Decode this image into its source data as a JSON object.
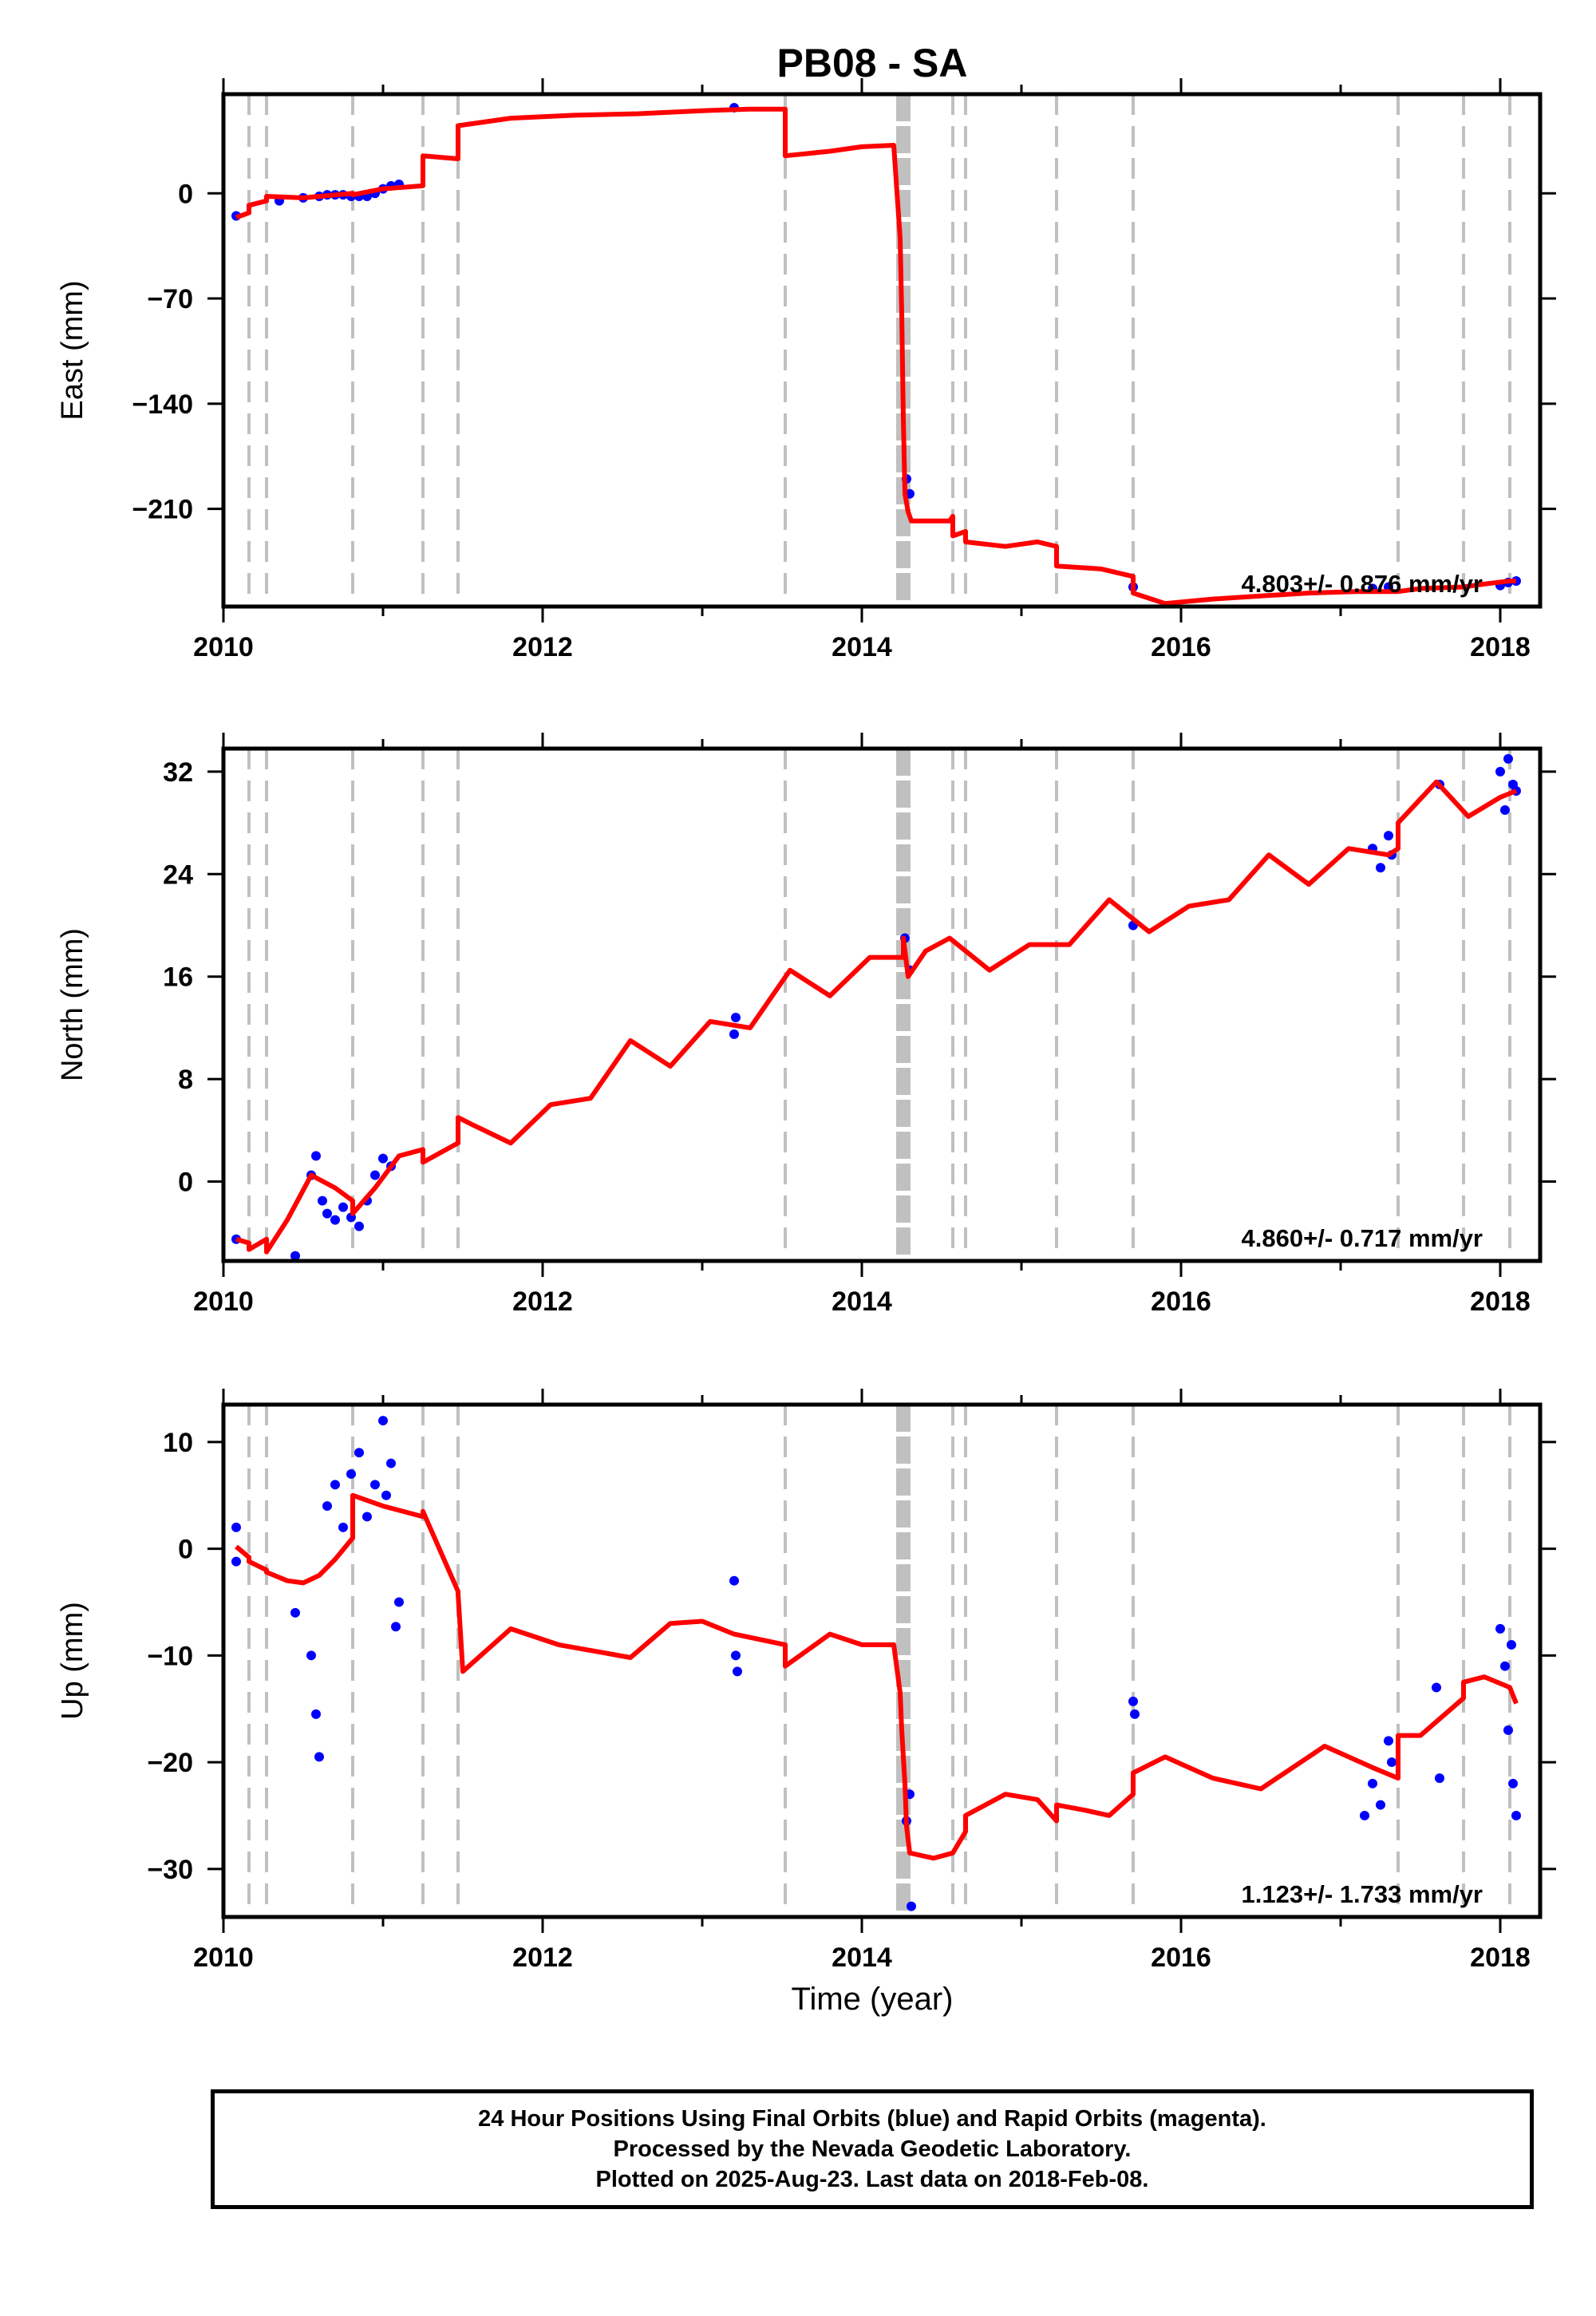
{
  "title": "PB08 - SA",
  "xlabel": "Time (year)",
  "footer": {
    "line1": "24 Hour Positions Using Final Orbits (blue) and Rapid Orbits (magenta).",
    "line2": "Processed by the Nevada Geodetic Laboratory.",
    "line3": "Plotted on 2025-Aug-23. Last data on 2018-Feb-08."
  },
  "colors": {
    "final_orbits": "#0000ff",
    "model": "#ff0000",
    "event_lines": "#c0c0c0"
  },
  "event_lines": [
    2010.16,
    2010.27,
    2010.81,
    2011.25,
    2011.47,
    2013.52,
    2014.26,
    2014.57,
    2014.65,
    2015.22,
    2015.7,
    2017.36,
    2017.77,
    2018.06
  ],
  "chart_data": [
    {
      "type": "scatter",
      "name": "east",
      "ylabel": "East (mm)",
      "rate_label": "4.803+/- 0.876 mm/yr",
      "xlim": [
        2010.0,
        2018.25
      ],
      "ylim": [
        -275,
        66
      ],
      "xticks": [
        2010,
        2012,
        2014,
        2016,
        2018
      ],
      "yticks": [
        0,
        -70,
        -140,
        -210
      ],
      "ytick_labels": [
        "0",
        "−70",
        "−140",
        "−210"
      ],
      "model": {
        "x": [
          2010.08,
          2010.16,
          2010.16,
          2010.27,
          2010.27,
          2010.5,
          2010.81,
          2010.81,
          2011.0,
          2011.25,
          2011.25,
          2011.47,
          2011.47,
          2011.8,
          2012.2,
          2012.6,
          2013.0,
          2013.3,
          2013.52,
          2013.52,
          2013.8,
          2014.0,
          2014.2,
          2014.24,
          2014.25,
          2014.26,
          2014.27,
          2014.29,
          2014.3,
          2014.31,
          2014.55,
          2014.57,
          2014.57,
          2014.65,
          2014.65,
          2014.9,
          2015.1,
          2015.22,
          2015.22,
          2015.5,
          2015.7,
          2015.7,
          2015.9,
          2016.2,
          2016.5,
          2016.8,
          2017.1,
          2017.36,
          2017.5,
          2017.77,
          2017.9,
          2018.06,
          2018.1
        ],
        "y": [
          -16,
          -13,
          -8,
          -5,
          -2,
          -3,
          0,
          -1,
          3,
          5,
          25,
          23,
          45,
          50,
          52,
          53,
          55,
          56,
          56,
          25,
          28,
          31,
          32,
          -30,
          -80,
          -150,
          -200,
          -212,
          -215,
          -218,
          -218,
          -215,
          -228,
          -225,
          -232,
          -235,
          -232,
          -235,
          -248,
          -250,
          -255,
          -266,
          -273,
          -270,
          -268,
          -266,
          -265,
          -265,
          -263,
          -262,
          -260,
          -258,
          -258
        ]
      },
      "points": {
        "x": [
          2010.08,
          2010.35,
          2010.5,
          2010.6,
          2010.65,
          2010.7,
          2010.75,
          2010.8,
          2010.85,
          2010.9,
          2010.95,
          2011.0,
          2011.05,
          2011.1,
          2013.2,
          2014.28,
          2014.3,
          2015.7,
          2017.2,
          2017.3,
          2018.0,
          2018.05,
          2018.1
        ],
        "y": [
          -15,
          -5,
          -3,
          -2,
          -1,
          -1,
          -1,
          -2,
          -2,
          -2,
          0,
          3,
          5,
          6,
          57,
          -190,
          -200,
          -262,
          -263,
          -262,
          -261,
          -259,
          -258
        ]
      }
    },
    {
      "type": "scatter",
      "name": "north",
      "ylabel": "North (mm)",
      "rate_label": "4.860+/- 0.717 mm/yr",
      "xlim": [
        2010.0,
        2018.25
      ],
      "ylim": [
        -6.2,
        33.8
      ],
      "xticks": [
        2010,
        2012,
        2014,
        2016,
        2018
      ],
      "yticks": [
        32,
        24,
        16,
        8,
        0
      ],
      "ytick_labels": [
        "32",
        "24",
        "16",
        "8",
        "0"
      ],
      "model": {
        "x": [
          2010.08,
          2010.16,
          2010.16,
          2010.27,
          2010.27,
          2010.4,
          2010.55,
          2010.7,
          2010.81,
          2010.81,
          2010.95,
          2011.1,
          2011.25,
          2011.25,
          2011.47,
          2011.47,
          2011.55,
          2011.8,
          2012.05,
          2012.3,
          2012.55,
          2012.8,
          2013.05,
          2013.3,
          2013.55,
          2013.8,
          2014.05,
          2014.26,
          2014.26,
          2014.29,
          2014.4,
          2014.55,
          2014.8,
          2015.05,
          2015.3,
          2015.55,
          2015.8,
          2016.05,
          2016.3,
          2016.55,
          2016.8,
          2017.05,
          2017.3,
          2017.36,
          2017.36,
          2017.6,
          2017.8,
          2018.0,
          2018.1
        ],
        "y": [
          -4.5,
          -4.8,
          -5.3,
          -4.5,
          -5.5,
          -3,
          0.5,
          -0.5,
          -1.5,
          -2.5,
          -0.5,
          2,
          2.5,
          1.5,
          3,
          5,
          4.5,
          3,
          6,
          6.5,
          11,
          9,
          12.5,
          12,
          16.5,
          14.5,
          17.5,
          17.5,
          19,
          16,
          18,
          19,
          16.5,
          18.5,
          18.5,
          22,
          19.5,
          21.5,
          22,
          25.5,
          23.2,
          26,
          25.5,
          26,
          28,
          31.2,
          28.5,
          30,
          30.5
        ]
      },
      "points": {
        "x": [
          2010.08,
          2010.55,
          2010.58,
          2010.62,
          2010.65,
          2010.7,
          2010.75,
          2010.8,
          2010.85,
          2010.9,
          2010.95,
          2011.0,
          2011.05,
          2010.45,
          2013.2,
          2013.21,
          2014.27,
          2014.3,
          2015.7,
          2017.2,
          2017.25,
          2017.3,
          2017.32,
          2017.62,
          2018.0,
          2018.03,
          2018.05,
          2018.08,
          2018.1
        ],
        "y": [
          -4.5,
          0.5,
          2,
          -1.5,
          -2.5,
          -3,
          -2,
          -2.8,
          -3.5,
          -1.5,
          0.5,
          1.8,
          1.2,
          -5.8,
          11.5,
          12.8,
          19,
          16.5,
          20,
          26,
          24.5,
          27,
          25.5,
          31,
          32,
          29,
          33,
          31,
          30.5
        ]
      }
    },
    {
      "type": "scatter",
      "name": "up",
      "ylabel": "Up (mm)",
      "rate_label": "1.123+/- 1.733 mm/yr",
      "xlim": [
        2010.0,
        2018.25
      ],
      "ylim": [
        -34.5,
        13.5
      ],
      "xticks": [
        2010,
        2012,
        2014,
        2016,
        2018
      ],
      "xtick_labels": [
        "2010",
        "2012",
        "2014",
        "2016",
        "2018"
      ],
      "yticks": [
        10,
        0,
        -10,
        -20,
        -30
      ],
      "ytick_labels": [
        "10",
        "0",
        "−10",
        "−20",
        "−30"
      ],
      "model": {
        "x": [
          2010.08,
          2010.16,
          2010.16,
          2010.27,
          2010.27,
          2010.4,
          2010.5,
          2010.6,
          2010.7,
          2010.81,
          2010.81,
          2011.0,
          2011.25,
          2011.25,
          2011.47,
          2011.47,
          2011.5,
          2011.8,
          2012.1,
          2012.4,
          2012.55,
          2012.8,
          2013.0,
          2013.2,
          2013.52,
          2013.52,
          2013.8,
          2014.0,
          2014.2,
          2014.24,
          2014.25,
          2014.27,
          2014.28,
          2014.3,
          2014.45,
          2014.57,
          2014.65,
          2014.65,
          2014.9,
          2015.1,
          2015.22,
          2015.22,
          2015.4,
          2015.55,
          2015.7,
          2015.7,
          2015.9,
          2016.2,
          2016.5,
          2016.9,
          2017.2,
          2017.36,
          2017.36,
          2017.5,
          2017.77,
          2017.77,
          2017.9,
          2018.06,
          2018.1
        ],
        "y": [
          0.2,
          -0.8,
          -1.2,
          -2.0,
          -2.2,
          -3,
          -3.2,
          -2.5,
          -1,
          1,
          5,
          4,
          3,
          3.5,
          -4,
          -4.2,
          -11.5,
          -7.5,
          -9,
          -9.8,
          -10.2,
          -7,
          -6.8,
          -8,
          -9,
          -11,
          -8,
          -9,
          -9,
          -13.5,
          -17,
          -22,
          -26,
          -28.5,
          -29,
          -28.5,
          -26.5,
          -25,
          -23,
          -23.5,
          -25.5,
          -24,
          -24.5,
          -25,
          -23,
          -21,
          -19.5,
          -21.5,
          -22.5,
          -18.5,
          -20.5,
          -21.5,
          -17.5,
          -17.5,
          -14,
          -12.5,
          -12,
          -13,
          -14.5
        ]
      },
      "points": {
        "x": [
          2010.08,
          2010.08,
          2010.45,
          2010.55,
          2010.58,
          2010.6,
          2010.65,
          2010.7,
          2010.75,
          2010.8,
          2010.85,
          2010.9,
          2010.95,
          2011.0,
          2011.02,
          2011.05,
          2011.1,
          2011.08,
          2013.2,
          2013.21,
          2013.22,
          2014.28,
          2014.3,
          2014.31,
          2015.7,
          2015.71,
          2017.15,
          2017.2,
          2017.25,
          2017.3,
          2017.32,
          2017.6,
          2017.62,
          2018.0,
          2018.03,
          2018.05,
          2018.08,
          2018.1,
          2018.07
        ],
        "y": [
          2,
          -1.2,
          -6,
          -10,
          -15.5,
          -19.5,
          4,
          6,
          2,
          7,
          9,
          3,
          6,
          12,
          5,
          8,
          -5,
          -7.3,
          -3,
          -10,
          -11.5,
          -25.5,
          -23,
          -33.5,
          -14.3,
          -15.5,
          -25,
          -22,
          -24,
          -18,
          -20,
          -13,
          -21.5,
          -7.5,
          -11,
          -17,
          -22,
          -25,
          -9
        ]
      }
    }
  ]
}
